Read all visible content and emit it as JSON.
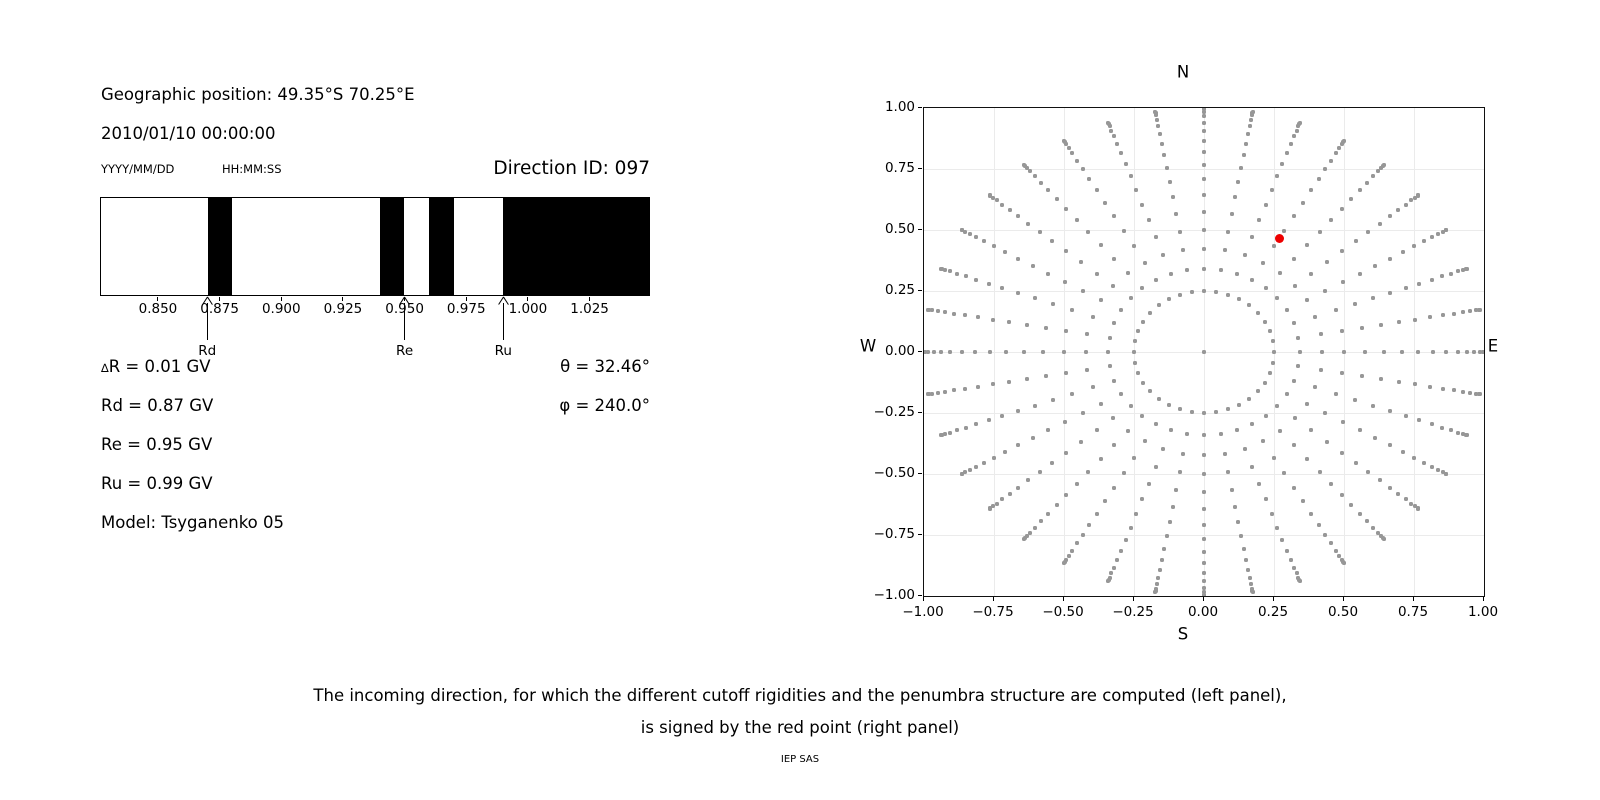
{
  "header": {
    "geo_position": "Geographic position: 49.35°S 70.25°E",
    "datetime": "2010/01/10 00:00:00",
    "date_format_hint": "YYYY/MM/DD",
    "time_format_hint": "HH:MM:SS",
    "direction_id": "Direction ID: 097"
  },
  "info": {
    "delta_symbol": "∆",
    "delta_rest": "R = 0.01 GV",
    "rd": "Rd = 0.87 GV",
    "re": "Re = 0.95 GV",
    "ru": "Ru = 0.99 GV",
    "model": "Model: Tsyganenko 05",
    "theta": "θ = 32.46°",
    "phi": "φ = 240.0°"
  },
  "caption": {
    "line1": "The incoming direction, for which the different cutoff rigidities and the penumbra structure are computed (left panel),",
    "line2": "is signed by the red point (right panel)"
  },
  "footer": "IEP SAS",
  "colors": {
    "band": "#000000",
    "grid_dot": "#979797",
    "red_point": "#ee0000",
    "gridline": "#ebebeb"
  },
  "chart_data": [
    {
      "type": "bar",
      "name": "penumbra-structure",
      "description": "Cutoff rigidity penumbra: black bands = allowed rigidity windows (GV)",
      "xlim": [
        0.8265,
        1.0495
      ],
      "xticks": [
        0.85,
        0.875,
        0.9,
        0.925,
        0.95,
        0.975,
        1.0,
        1.025
      ],
      "bands_gv": [
        [
          0.87,
          0.88
        ],
        [
          0.94,
          0.95
        ],
        [
          0.96,
          0.97
        ],
        [
          0.99,
          1.0495
        ]
      ],
      "arrows": [
        {
          "label": "Rd",
          "value": 0.87
        },
        {
          "label": "Re",
          "value": 0.95
        },
        {
          "label": "Ru",
          "value": 0.99
        }
      ]
    },
    {
      "type": "scatter",
      "name": "incoming-direction-map",
      "xlim": [
        -1.0,
        1.0
      ],
      "ylim": [
        -1.0,
        1.0
      ],
      "xticks": [
        -1.0,
        -0.75,
        -0.5,
        -0.25,
        0.0,
        0.25,
        0.5,
        0.75,
        1.0
      ],
      "yticks": [
        1.0,
        0.75,
        0.5,
        0.25,
        0.0,
        -0.25,
        -0.5,
        -0.75,
        -1.0
      ],
      "compass": {
        "n": "N",
        "s": "S",
        "w": "W",
        "e": "E"
      },
      "grid_on": true,
      "center_point": {
        "x": 0,
        "y": 0
      },
      "inner_ring": {
        "radius": 0.25,
        "n_points": 36
      },
      "spokes": {
        "azimuth_start_deg": 0,
        "azimuth_step_deg": 10,
        "n_azimuths": 36,
        "radii": [
          0.342,
          0.423,
          0.5,
          0.574,
          0.643,
          0.707,
          0.766,
          0.819,
          0.866,
          0.906,
          0.94,
          0.966,
          0.985,
          0.996,
          1.0
        ]
      },
      "red_point": {
        "x": 0.268,
        "y": 0.465,
        "theta_deg": 32.46,
        "phi_deg": 240.0
      }
    }
  ]
}
